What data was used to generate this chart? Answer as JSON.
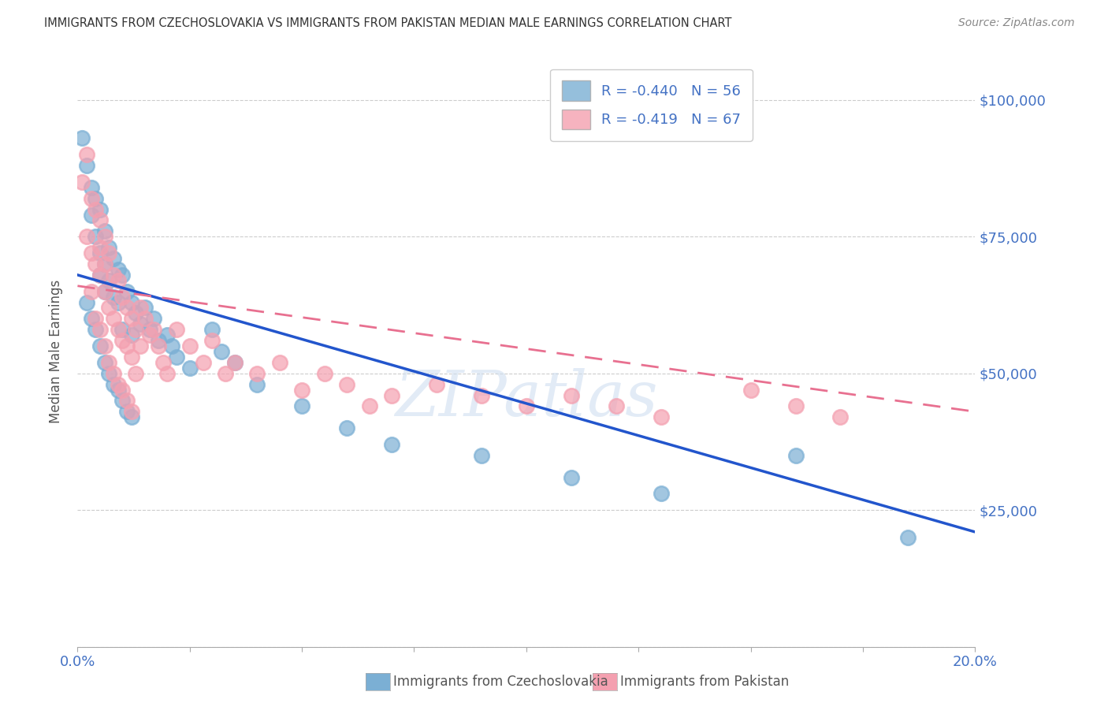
{
  "title": "IMMIGRANTS FROM CZECHOSLOVAKIA VS IMMIGRANTS FROM PAKISTAN MEDIAN MALE EARNINGS CORRELATION CHART",
  "source": "Source: ZipAtlas.com",
  "ylabel": "Median Male Earnings",
  "y_ticks": [
    0,
    25000,
    50000,
    75000,
    100000
  ],
  "y_tick_labels": [
    "",
    "$25,000",
    "$50,000",
    "$75,000",
    "$100,000"
  ],
  "x_min": 0.0,
  "x_max": 0.2,
  "y_min": 0,
  "y_max": 108000,
  "legend_entries": [
    {
      "label": "Immigrants from Czechoslovakia",
      "color": "#7bafd4",
      "line_color": "#2255cc",
      "R": -0.44,
      "N": 56
    },
    {
      "label": "Immigrants from Pakistan",
      "color": "#f4a0b0",
      "line_color": "#e87090",
      "R": -0.419,
      "N": 67
    }
  ],
  "watermark": "ZIPatlas",
  "background_color": "#ffffff",
  "grid_color": "#cccccc",
  "right_axis_color": "#4472c4",
  "title_color": "#333333",
  "scatter_alpha": 0.55,
  "scatter_size": 180,
  "czecho_x": [
    0.001,
    0.002,
    0.003,
    0.003,
    0.004,
    0.004,
    0.005,
    0.005,
    0.005,
    0.006,
    0.006,
    0.006,
    0.007,
    0.007,
    0.008,
    0.008,
    0.009,
    0.009,
    0.01,
    0.01,
    0.011,
    0.012,
    0.012,
    0.013,
    0.014,
    0.015,
    0.016,
    0.017,
    0.018,
    0.02,
    0.021,
    0.022,
    0.025,
    0.03,
    0.032,
    0.035,
    0.002,
    0.003,
    0.004,
    0.005,
    0.006,
    0.007,
    0.008,
    0.009,
    0.01,
    0.011,
    0.012,
    0.04,
    0.05,
    0.06,
    0.07,
    0.09,
    0.11,
    0.13,
    0.16,
    0.185
  ],
  "czecho_y": [
    93000,
    88000,
    84000,
    79000,
    82000,
    75000,
    80000,
    72000,
    68000,
    76000,
    70000,
    65000,
    73000,
    67000,
    71000,
    64000,
    69000,
    63000,
    68000,
    58000,
    65000,
    63000,
    57000,
    61000,
    59000,
    62000,
    58000,
    60000,
    56000,
    57000,
    55000,
    53000,
    51000,
    58000,
    54000,
    52000,
    63000,
    60000,
    58000,
    55000,
    52000,
    50000,
    48000,
    47000,
    45000,
    43000,
    42000,
    48000,
    44000,
    40000,
    37000,
    35000,
    31000,
    28000,
    35000,
    20000
  ],
  "pakistan_x": [
    0.001,
    0.002,
    0.002,
    0.003,
    0.003,
    0.004,
    0.004,
    0.005,
    0.005,
    0.005,
    0.006,
    0.006,
    0.006,
    0.007,
    0.007,
    0.008,
    0.008,
    0.009,
    0.009,
    0.01,
    0.01,
    0.011,
    0.011,
    0.012,
    0.012,
    0.013,
    0.013,
    0.014,
    0.014,
    0.015,
    0.016,
    0.017,
    0.018,
    0.019,
    0.02,
    0.022,
    0.025,
    0.028,
    0.03,
    0.033,
    0.035,
    0.04,
    0.045,
    0.05,
    0.055,
    0.06,
    0.065,
    0.07,
    0.08,
    0.09,
    0.1,
    0.11,
    0.12,
    0.13,
    0.003,
    0.004,
    0.005,
    0.006,
    0.007,
    0.008,
    0.009,
    0.01,
    0.011,
    0.012,
    0.15,
    0.16,
    0.17
  ],
  "pakistan_y": [
    85000,
    90000,
    75000,
    82000,
    72000,
    80000,
    70000,
    78000,
    68000,
    73000,
    75000,
    65000,
    70000,
    72000,
    62000,
    68000,
    60000,
    67000,
    58000,
    64000,
    56000,
    62000,
    55000,
    60000,
    53000,
    58000,
    50000,
    62000,
    55000,
    60000,
    57000,
    58000,
    55000,
    52000,
    50000,
    58000,
    55000,
    52000,
    56000,
    50000,
    52000,
    50000,
    52000,
    47000,
    50000,
    48000,
    44000,
    46000,
    48000,
    46000,
    44000,
    46000,
    44000,
    42000,
    65000,
    60000,
    58000,
    55000,
    52000,
    50000,
    48000,
    47000,
    45000,
    43000,
    47000,
    44000,
    42000
  ],
  "czecho_trend_x0": 0.0,
  "czecho_trend_x1": 0.2,
  "czecho_trend_y0": 68000,
  "czecho_trend_y1": 21000,
  "pakistan_trend_x0": 0.0,
  "pakistan_trend_x1": 0.2,
  "pakistan_trend_y0": 66000,
  "pakistan_trend_y1": 43000,
  "x_ticks": [
    0.0,
    0.025,
    0.05,
    0.075,
    0.1,
    0.125,
    0.15,
    0.175,
    0.2
  ]
}
